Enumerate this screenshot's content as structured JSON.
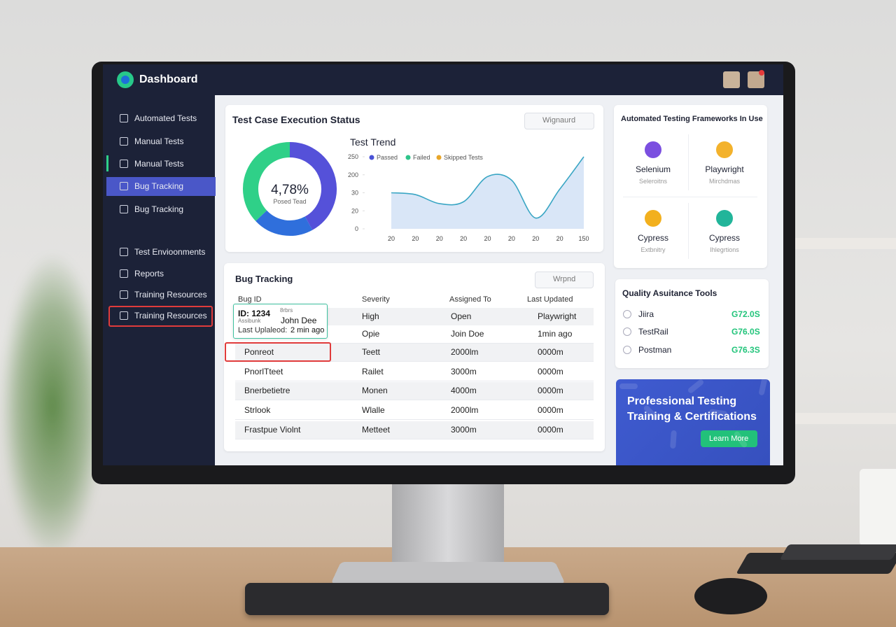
{
  "header": {
    "title": "Dashboard"
  },
  "sidebar": {
    "items": [
      "Automated Tests",
      "Manual Tests",
      "Manual Tests",
      "Bug Tracking",
      "Bug Tracking",
      "Test Envioonments",
      "Reports",
      "Training Resources",
      "Training Resources"
    ]
  },
  "execution": {
    "title": "Test Case Execution Status",
    "search": "Wignaurd",
    "donut": {
      "center": "4,78%",
      "caption": "Posed Tead",
      "values": [
        42,
        21,
        37
      ],
      "colors": [
        "#5551d9",
        "#2f6fdc",
        "#2fd088"
      ]
    },
    "trend": {
      "type": "line",
      "title": "Test Trend",
      "legend": [
        {
          "name": "Passed",
          "color": "#4a52d6"
        },
        {
          "name": "Failed",
          "color": "#2fc48a"
        },
        {
          "name": "Skipped Tests",
          "color": "#e8a62a"
        }
      ],
      "categories": [
        "20",
        "20",
        "20",
        "20",
        "20",
        "20",
        "20",
        "20",
        "150"
      ],
      "values": [
        2.0,
        1.9,
        1.4,
        1.5,
        2.9,
        2.7,
        0.6,
        2.2,
        4.0
      ],
      "color": "#3aa6c4",
      "ylim": [
        0,
        4
      ],
      "yticks": [
        {
          "value": 0,
          "label": "0"
        },
        {
          "value": 1,
          "label": "20"
        },
        {
          "value": 2,
          "label": "30"
        },
        {
          "value": 3,
          "label": "200"
        },
        {
          "value": 4,
          "label": "250"
        }
      ]
    }
  },
  "frameworks": {
    "title": "Automated Testing Frameworks In Use",
    "items": [
      {
        "name": "Selenium",
        "sub": "Seleroitns",
        "color": "#7b4fe0"
      },
      {
        "name": "Playwright",
        "sub": "Mirchdmas",
        "color": "#f3b22c"
      },
      {
        "name": "Cypress",
        "sub": "Extbnitry",
        "color": "#f2b01e"
      },
      {
        "name": "Cypress",
        "sub": "Ihlegrtions",
        "color": "#22b59a"
      }
    ]
  },
  "qa_tools": {
    "title": "Quality Asuitance Tools",
    "items": [
      {
        "name": "Jiira",
        "value": "G72.0S"
      },
      {
        "name": "TestRail",
        "value": "G76.0S"
      },
      {
        "name": "Postman",
        "value": "G76.3S"
      }
    ]
  },
  "promo": {
    "title": [
      "Professional Testing",
      "Training & Certifications"
    ],
    "button": "Learn More"
  },
  "bug_tracking": {
    "title": "Bug Tracking",
    "filter": "Wrpnd",
    "columns": [
      "Bug ID",
      "Severity",
      "Assigned To",
      "Last Updated"
    ],
    "tooltip": {
      "id": "ID: 1234",
      "tag": "8rbrs",
      "sub": "Assibunk",
      "name": "John Dee",
      "last": "Last Uplaleod:",
      "ago": "2 min ago"
    },
    "rows": [
      [
        "High",
        "Open",
        "Playwright"
      ],
      [
        "Opie",
        "Join Doe",
        "1min ago"
      ],
      [
        "Ponreot",
        "Teett",
        "2000lm",
        "0000m"
      ],
      [
        "PnorlTteet",
        "Railet",
        "3000m",
        "0000m"
      ],
      [
        "Bnerbetietre",
        "Monen",
        "4000m",
        "0000m"
      ],
      [
        "Strlook",
        "Wlalle",
        "2000lm",
        "0000m"
      ],
      [
        "Frastpue Violnt",
        "Metteet",
        "3000m",
        "0000m"
      ]
    ]
  }
}
